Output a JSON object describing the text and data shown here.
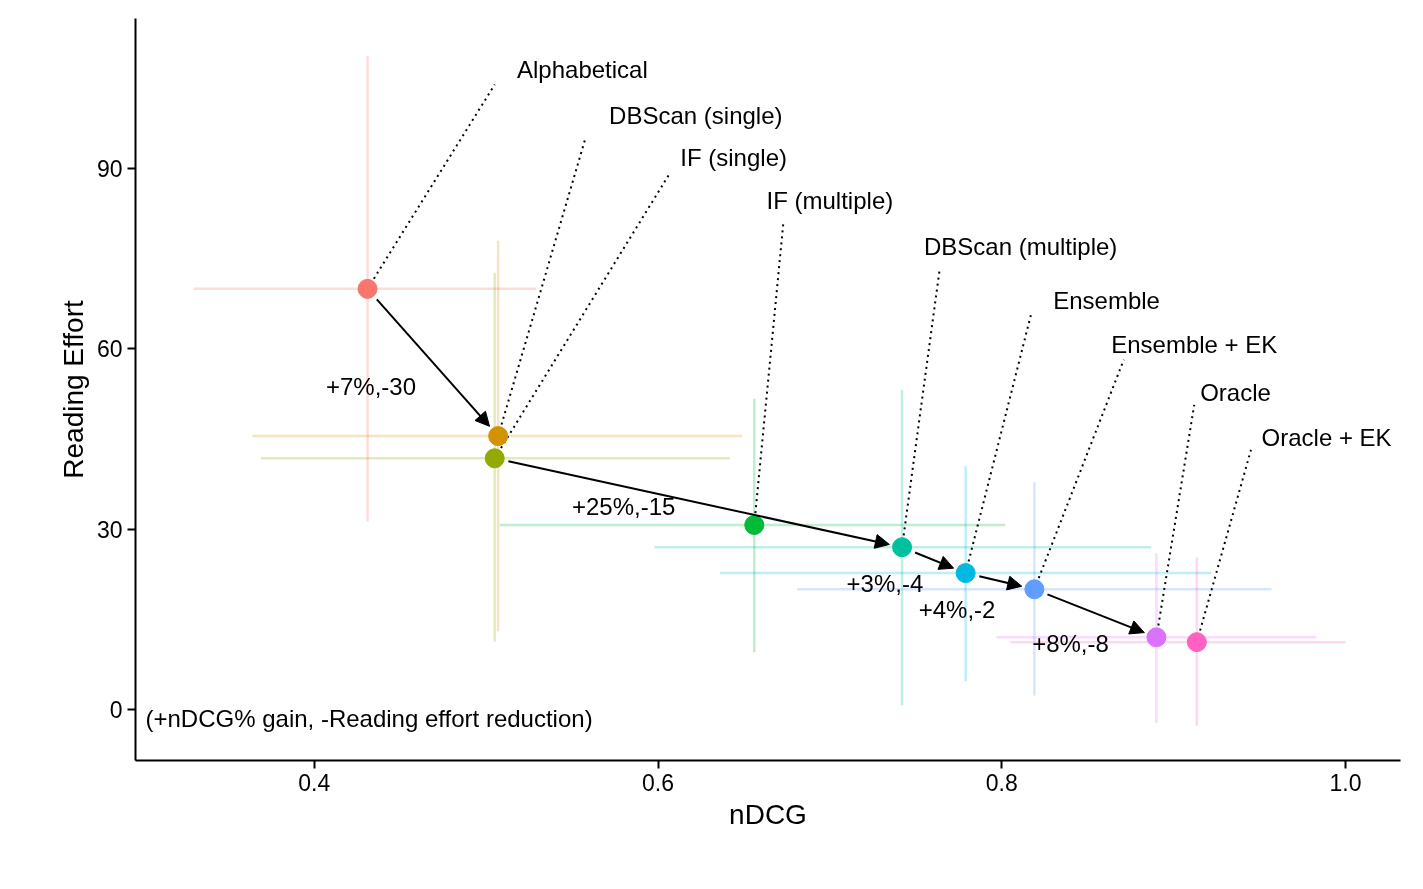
{
  "chart_data": {
    "type": "scatter",
    "xlabel": "nDCG",
    "ylabel": "Reading Effort",
    "xlim": [
      0.296,
      1.032
    ],
    "ylim": [
      -8.5,
      115
    ],
    "xticks": [
      0.4,
      0.6,
      0.8,
      {
        "value": 1.0,
        "label": "1.0"
      }
    ],
    "yticks": [
      0,
      30,
      60,
      90
    ],
    "grid": false,
    "legend": false,
    "marker": "circle",
    "series": [
      {
        "name": "Alphabetical",
        "color": "#F8766D",
        "x": [
          0.431
        ],
        "values": [
          70
        ],
        "xerrors": [
          [
            0.33,
            0.529
          ]
        ],
        "errors": [
          [
            31.3,
            108.8
          ]
        ]
      },
      {
        "name": "DBScan (single)",
        "color": "#D39200",
        "x": [
          0.507
        ],
        "values": [
          45.5
        ],
        "xerrors": [
          [
            0.364,
            0.649
          ]
        ],
        "errors": [
          [
            13,
            78
          ]
        ]
      },
      {
        "name": "IF (single)",
        "color": "#93AA00",
        "x": [
          0.505
        ],
        "values": [
          41.8
        ],
        "xerrors": [
          [
            0.369,
            0.642
          ]
        ],
        "errors": [
          [
            11.3,
            72.7
          ]
        ]
      },
      {
        "name": "IF (multiple)",
        "color": "#00BA38",
        "x": [
          0.656
        ],
        "values": [
          30.7
        ],
        "xerrors": [
          [
            0.508,
            0.802
          ]
        ],
        "errors": [
          [
            9.5,
            51.7
          ]
        ]
      },
      {
        "name": "DBScan (multiple)",
        "color": "#00C19F",
        "x": [
          0.742
        ],
        "values": [
          27
        ],
        "xerrors": [
          [
            0.598,
            0.887
          ]
        ],
        "errors": [
          [
            0.7,
            53.2
          ]
        ]
      },
      {
        "name": "Ensemble",
        "color": "#00B9E3",
        "x": [
          0.779
        ],
        "values": [
          22.7
        ],
        "xerrors": [
          [
            0.636,
            0.922
          ]
        ],
        "errors": [
          [
            4.7,
            40.5
          ]
        ]
      },
      {
        "name": "Ensemble + EK",
        "color": "#619CFF",
        "x": [
          0.819
        ],
        "values": [
          20
        ],
        "xerrors": [
          [
            0.681,
            0.957
          ]
        ],
        "errors": [
          [
            2.3,
            37.8
          ]
        ]
      },
      {
        "name": "Oracle",
        "color": "#DB72FB",
        "x": [
          0.89
        ],
        "values": [
          12
        ],
        "xerrors": [
          [
            0.797,
            0.983
          ]
        ],
        "errors": [
          [
            -2.2,
            26
          ]
        ]
      },
      {
        "name": "Oracle + EK",
        "color": "#FF61C3",
        "x": [
          0.9135
        ],
        "values": [
          11.2
        ],
        "xerrors": [
          [
            0.805,
            1.0
          ]
        ],
        "errors": [
          [
            -2.7,
            25.3
          ]
        ]
      }
    ],
    "annotations": [
      "+7%,-30",
      "+25%,-15",
      "+3%,-4",
      "+4%,-2",
      "+8%,-8",
      "(+nDCG% gain, -Reading effort reduction)"
    ]
  }
}
